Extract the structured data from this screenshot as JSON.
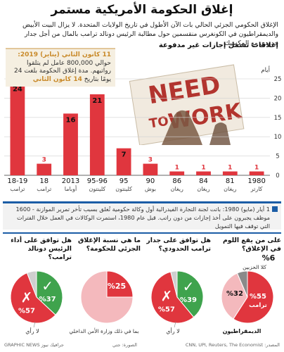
{
  "title": "إغلاق الحكومة الأمريكية مستمر",
  "intro": "الإغلاق الحكومي الجزئي الحالي بات الآن الأطول في تاريخ الولايات المتحدة. لا يزال البيت الأبيض والديمقراطيون في الكونغرس منقسمين حول مطالبة الرئيس دونالد ترامب بالمال من أجل جدار حدودي مع المكسيك",
  "subhead": "إغلاقات تشمل إجازات غير مدفوعة",
  "callout": {
    "date": "11 كانون الثاني (يناير) 2019:",
    "text": "حوالي 800,000 عامل لم يتلقوا رواتبهم. مدة إغلاق الحكومة بلغت 24 يومًا بتاريخ",
    "range": "14 كانون الثاني"
  },
  "sign_text": [
    "NEED",
    "TO",
    "WORK"
  ],
  "chart_data": {
    "type": "bar",
    "ylabel": "أيام",
    "ylim": [
      0,
      25
    ],
    "yticks": [
      0,
      5,
      10,
      15,
      20,
      25
    ],
    "categories": [
      "18-19",
      "18",
      "2013",
      "95-96",
      "95",
      "90",
      "86",
      "84",
      "81",
      "1980"
    ],
    "presidents": [
      "ترامب",
      "ترامب",
      "أوباما",
      "كلينتون",
      "كلينتون",
      "بوش",
      "ريغان",
      "ريغان",
      "ريغان",
      "كارتر"
    ],
    "values": [
      24,
      3,
      16,
      21,
      7,
      3,
      1,
      1,
      1,
      1
    ],
    "bar_color": "#e0363e"
  },
  "bottom_note": "1 أيار (مايو) 1980: باتت لجنة التجارة الفيدرالية أول وكالة حكومية تُغلق بسبب تأخر تمرير الموازنة - 1600 موظف يجبرون على أخذ إجازات من دون راتب. قبل عام 1980، استمرت الوكالات في العمل خلال الفترات التي توقف فيها التمويل",
  "polls": [
    {
      "question": "على من يقع اللوم في الإغلاق؟",
      "kind": "blame",
      "slices": [
        {
          "label": "ترامب",
          "value": 55,
          "value_label": "%55",
          "color": "#e0363e"
        },
        {
          "label": "الديمقراطيون",
          "value": 32,
          "value_label": "%32",
          "color": "#f4b9bd"
        },
        {
          "label": "كلا الحزبين",
          "value": 6,
          "value_label": "%6",
          "color": "#8a8a8a"
        }
      ]
    },
    {
      "question": "هل توافق على جدار ترامب الحدودي؟",
      "kind": "yesno",
      "slices": [
        {
          "label": "نعم",
          "value": 39,
          "value_label": "%39",
          "color": "#3fa34d"
        },
        {
          "label": "لا",
          "value": 57,
          "value_label": "%57",
          "color": "#e0363e"
        },
        {
          "label": "لا رأي",
          "value": 4,
          "value_label": "",
          "color": "#cfcfcf"
        }
      ],
      "no_opinion": "لا رأي"
    },
    {
      "question": "ما هي نسبة الإغلاق الجزئي للحكومة؟",
      "kind": "share",
      "slices": [
        {
          "label": "",
          "value": 25,
          "value_label": "%25",
          "color": "#e0363e"
        },
        {
          "label": "",
          "value": 75,
          "value_label": "",
          "color": "#f4b9bd"
        }
      ],
      "note": "بما في ذلك وزارة الأمن الداخلي"
    },
    {
      "question": "هل توافق على أداء الرئيس دونالد ترامب؟",
      "kind": "yesno",
      "slices": [
        {
          "label": "نعم",
          "value": 37,
          "value_label": "%37",
          "color": "#3fa34d"
        },
        {
          "label": "لا",
          "value": 57,
          "value_label": "%57",
          "color": "#e0363e"
        },
        {
          "label": "لا رأي",
          "value": 6,
          "value_label": "",
          "color": "#cfcfcf"
        }
      ],
      "no_opinion": "لا رأي"
    }
  ],
  "footer": {
    "source": "المصدر: CNN, UPI, Reuters, The Economist",
    "photo_credit": "الصورة: جتي",
    "brand": "GRAPHIC NEWS جرافيك نيوز"
  }
}
